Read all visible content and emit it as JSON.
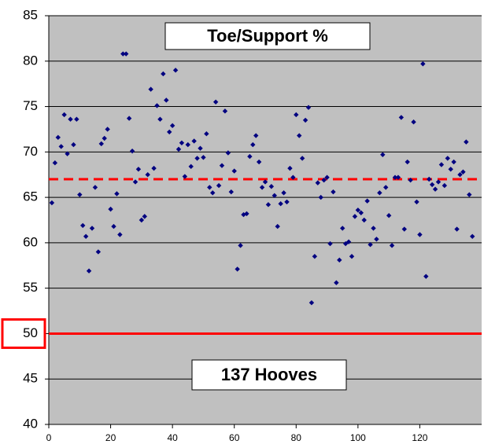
{
  "chart_data": {
    "type": "scatter",
    "annotations": [
      "Toe/Support %",
      "137 Hooves"
    ],
    "x": [
      1,
      2,
      3,
      4,
      5,
      6,
      7,
      8,
      9,
      10,
      11,
      12,
      13,
      14,
      15,
      16,
      17,
      18,
      19,
      20,
      21,
      22,
      23,
      24,
      25,
      26,
      27,
      28,
      29,
      30,
      31,
      32,
      33,
      34,
      35,
      36,
      37,
      38,
      39,
      40,
      41,
      42,
      43,
      44,
      45,
      46,
      47,
      48,
      49,
      50,
      51,
      52,
      53,
      54,
      55,
      56,
      57,
      58,
      59,
      60,
      61,
      62,
      63,
      64,
      65,
      66,
      67,
      68,
      69,
      70,
      71,
      72,
      73,
      74,
      75,
      76,
      77,
      78,
      79,
      80,
      81,
      82,
      83,
      84,
      85,
      86,
      87,
      88,
      89,
      90,
      91,
      92,
      93,
      94,
      95,
      96,
      97,
      98,
      99,
      100,
      101,
      102,
      103,
      104,
      105,
      106,
      107,
      108,
      109,
      110,
      111,
      112,
      113,
      114,
      115,
      116,
      117,
      118,
      119,
      120,
      121,
      122,
      123,
      124,
      125,
      126,
      127,
      128,
      129,
      130,
      131,
      132,
      133,
      134,
      135,
      136,
      137
    ],
    "values": [
      64.4,
      68.8,
      71.6,
      70.6,
      74.1,
      69.8,
      73.6,
      70.8,
      73.6,
      65.3,
      61.9,
      60.7,
      56.9,
      61.6,
      66.1,
      59.0,
      70.9,
      71.5,
      72.5,
      63.7,
      61.8,
      65.4,
      60.9,
      80.8,
      80.8,
      73.7,
      70.1,
      66.7,
      68.1,
      62.5,
      62.9,
      67.5,
      76.9,
      68.2,
      75.1,
      73.6,
      78.6,
      75.7,
      72.2,
      72.9,
      79.0,
      70.3,
      71.0,
      67.3,
      70.8,
      68.4,
      71.2,
      69.3,
      70.4,
      69.4,
      72.0,
      66.1,
      65.5,
      75.5,
      66.3,
      68.5,
      74.5,
      69.9,
      65.6,
      67.9,
      57.1,
      59.7,
      63.1,
      63.2,
      69.5,
      70.8,
      71.8,
      68.9,
      66.1,
      66.7,
      64.2,
      66.2,
      65.2,
      61.8,
      64.3,
      65.5,
      64.5,
      68.2,
      67.2,
      74.1,
      71.8,
      69.3,
      73.5,
      74.9,
      53.4,
      58.5,
      66.6,
      65.0,
      66.9,
      67.2,
      59.9,
      65.6,
      55.6,
      58.1,
      61.6,
      59.9,
      60.1,
      58.5,
      62.9,
      63.6,
      63.3,
      62.5,
      64.6,
      59.8,
      61.6,
      60.4,
      65.5,
      69.7,
      66.1,
      63.0,
      59.7,
      67.2,
      67.2,
      73.8,
      61.5,
      68.9,
      66.9,
      73.3,
      64.5,
      60.9,
      79.7,
      56.3,
      67.0,
      66.4,
      65.9,
      66.7,
      68.6,
      66.3,
      69.3,
      68.1,
      68.9,
      61.5,
      67.5,
      67.8,
      71.1,
      65.3,
      60.7
    ],
    "color": "#000080",
    "xlim": [
      0,
      140
    ],
    "xticks": [
      0,
      20,
      40,
      60,
      80,
      100,
      120
    ],
    "ylim": [
      40,
      85
    ],
    "yticks": [
      40,
      45,
      50,
      55,
      60,
      65,
      70,
      75,
      80,
      85
    ],
    "grid": true,
    "reference_lines": [
      {
        "value": 67,
        "style": "dashed",
        "color": "#ff0000"
      },
      {
        "value": 50,
        "style": "solid",
        "color": "#ff0000"
      }
    ],
    "highlighted_ytick": 50,
    "plot_background": "#c0c0c0"
  }
}
